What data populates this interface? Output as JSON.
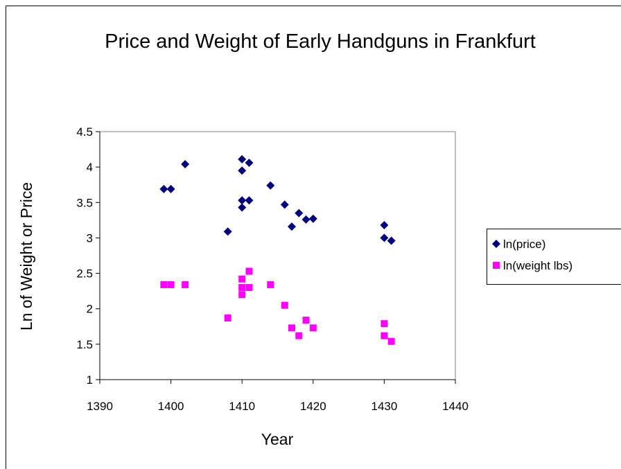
{
  "chart_data": {
    "type": "scatter",
    "title": "Price and Weight of Early Handguns in Frankfurt",
    "x_label": "Year",
    "y_label": "Ln of Weight or Price",
    "xlim": [
      1390,
      1440
    ],
    "xticks": [
      1390,
      1400,
      1410,
      1420,
      1430,
      1440
    ],
    "ylim": [
      1,
      4.5
    ],
    "yticks": [
      1,
      1.5,
      2,
      2.5,
      3,
      3.5,
      4,
      4.5
    ],
    "grid": false,
    "legend": "right",
    "series": [
      {
        "name": "ln(price)",
        "color": "#000080",
        "marker": "diamond",
        "x": [
          1399,
          1400,
          1402,
          1408,
          1410,
          1410,
          1410,
          1410,
          1411,
          1411,
          1414,
          1416,
          1417,
          1418,
          1419,
          1420,
          1430,
          1430,
          1431
        ],
        "values": [
          3.69,
          3.69,
          4.04,
          3.09,
          4.11,
          3.95,
          3.53,
          3.43,
          4.06,
          3.53,
          3.74,
          3.47,
          3.16,
          3.35,
          3.26,
          3.27,
          3.18,
          3.0,
          2.96
        ]
      },
      {
        "name": "ln(weight lbs)",
        "color": "#ff00ff",
        "marker": "square",
        "x": [
          1399,
          1400,
          1402,
          1408,
          1410,
          1410,
          1410,
          1411,
          1411,
          1414,
          1416,
          1417,
          1418,
          1419,
          1420,
          1430,
          1430,
          1431
        ],
        "values": [
          2.34,
          2.34,
          2.34,
          1.87,
          2.42,
          2.3,
          2.2,
          2.53,
          2.3,
          2.34,
          2.05,
          1.73,
          1.62,
          1.84,
          1.73,
          1.79,
          1.62,
          1.54
        ]
      }
    ]
  }
}
